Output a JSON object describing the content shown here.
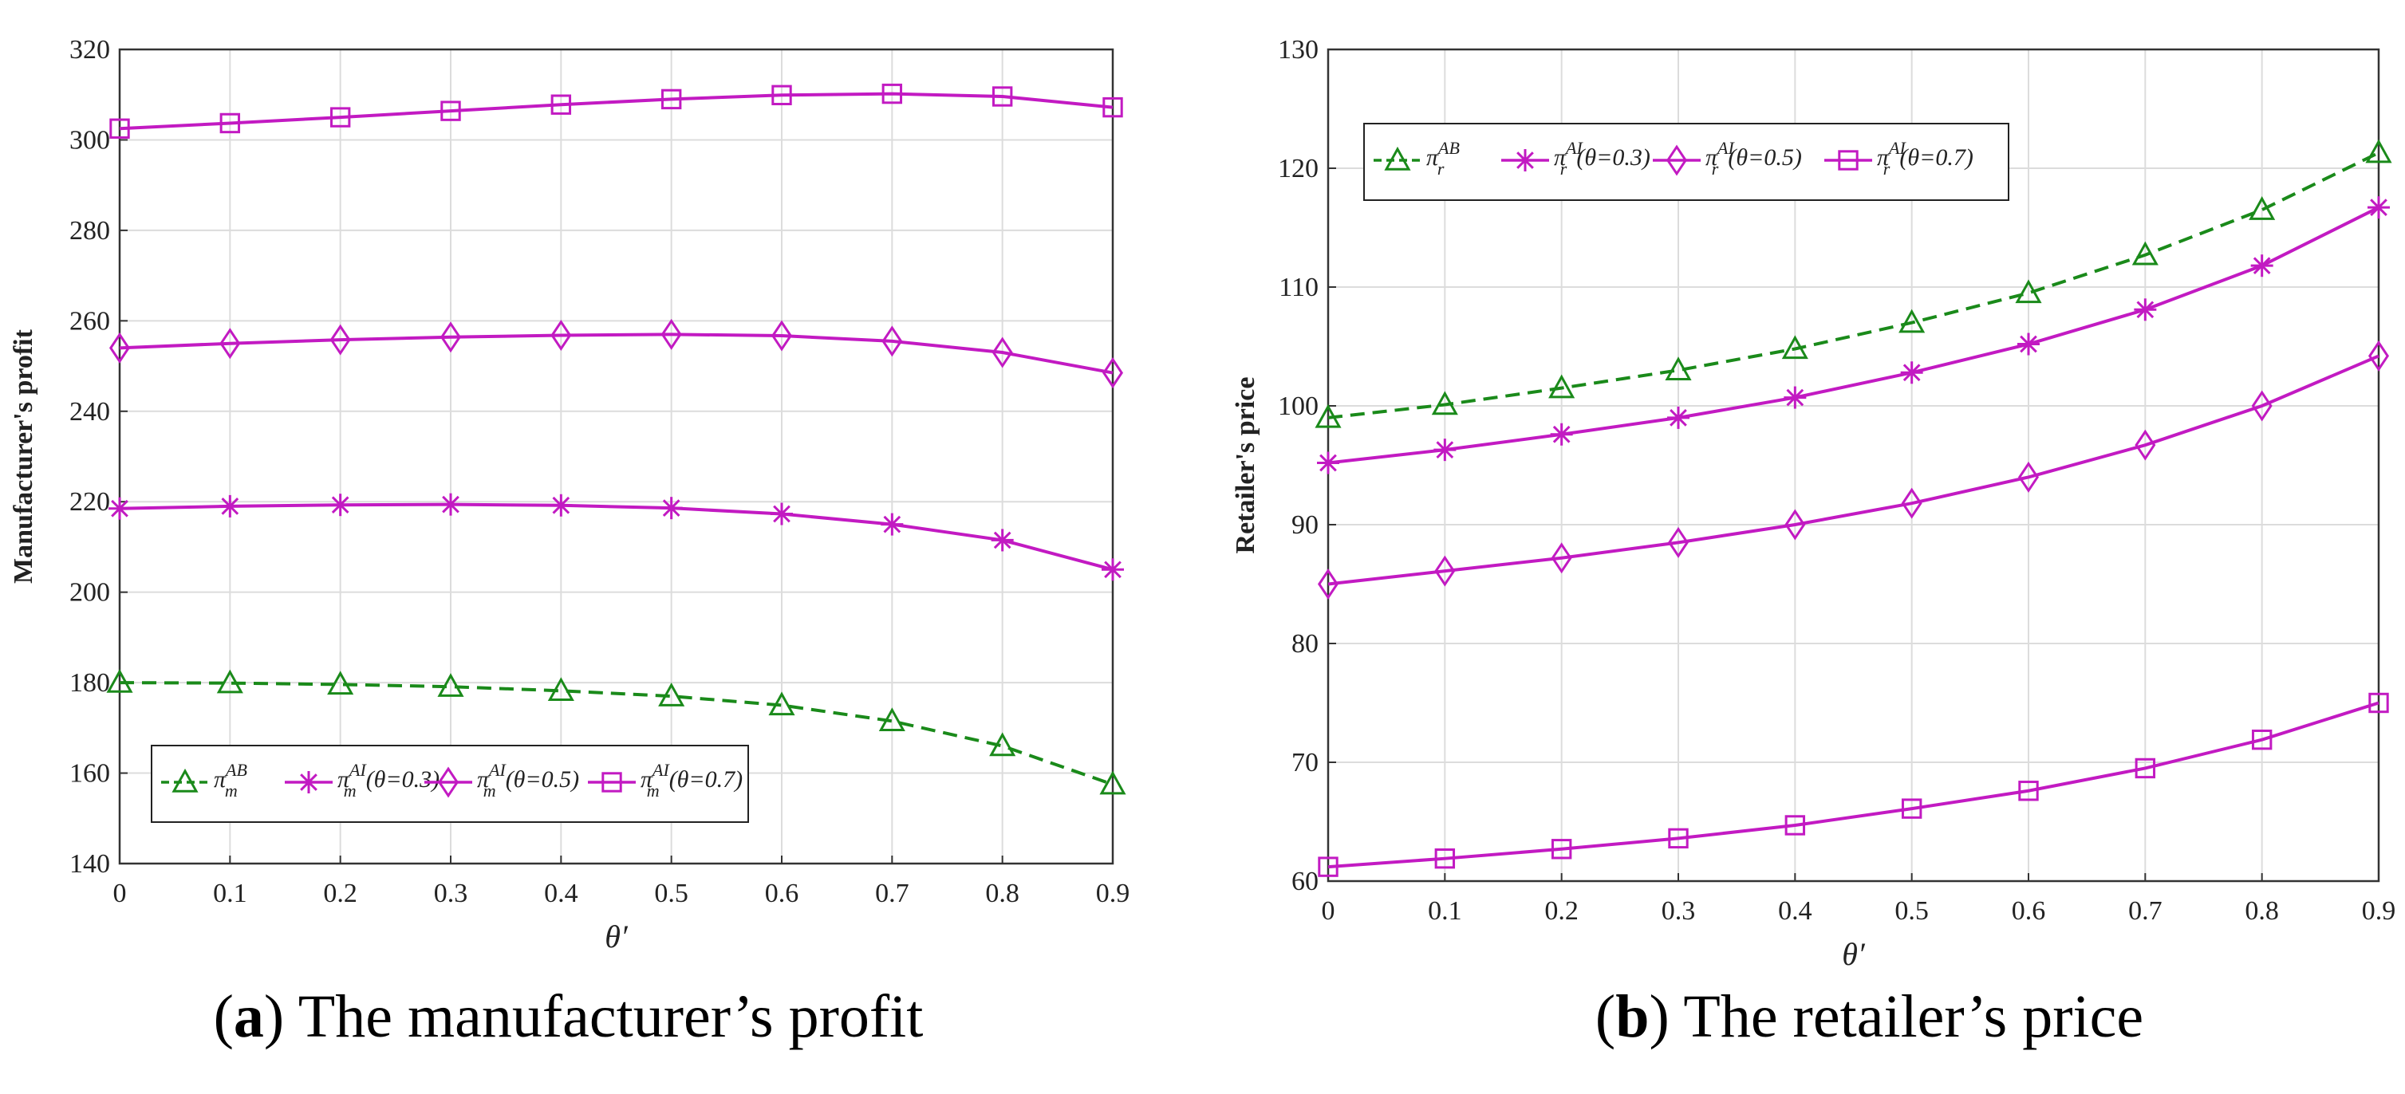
{
  "chart_data": [
    {
      "id": "a",
      "type": "line",
      "panel_label": "a",
      "caption_text": "The manufacturer’s profit",
      "xlabel": "θ′",
      "ylabel": "Manufacturer's profit",
      "x": [
        0,
        0.1,
        0.2,
        0.3,
        0.4,
        0.5,
        0.6,
        0.7,
        0.8,
        0.9
      ],
      "xticks": [
        "0",
        "0.1",
        "0.2",
        "0.3",
        "0.4",
        "0.5",
        "0.6",
        "0.7",
        "0.8",
        "0.9"
      ],
      "xlim": [
        0,
        0.9
      ],
      "ylim": [
        140,
        320
      ],
      "yticks": [
        140,
        160,
        180,
        200,
        220,
        240,
        260,
        280,
        300,
        320
      ],
      "grid": true,
      "legend_position": "lower-left",
      "series": [
        {
          "name": "π_m^AB",
          "base": "π",
          "sub": "m",
          "sup": "AB",
          "suffix": "",
          "color": "#1a8a1a",
          "dash": "dashed",
          "marker": "triangle",
          "values": [
            180,
            179.9,
            179.6,
            179.1,
            178.2,
            177,
            175,
            171.5,
            166,
            157.5
          ]
        },
        {
          "name": "π_m^AI(θ=0.3)",
          "base": "π",
          "sub": "m",
          "sup": "AI",
          "suffix": "(θ=0.3)",
          "color": "#c21ac2",
          "dash": "solid",
          "marker": "asterisk",
          "values": [
            218.5,
            219,
            219.3,
            219.4,
            219.2,
            218.6,
            217.3,
            215,
            211.5,
            205
          ]
        },
        {
          "name": "π_m^AI(θ=0.5)",
          "base": "π",
          "sub": "m",
          "sup": "AI",
          "suffix": "(θ=0.5)",
          "color": "#c21ac2",
          "dash": "solid",
          "marker": "diamond",
          "values": [
            254,
            255,
            255.8,
            256.4,
            256.8,
            257,
            256.7,
            255.5,
            253,
            248.5
          ]
        },
        {
          "name": "π_m^AI(θ=0.7)",
          "base": "π",
          "sub": "m",
          "sup": "AI",
          "suffix": "(θ=0.7)",
          "color": "#c21ac2",
          "dash": "solid",
          "marker": "square",
          "values": [
            302.5,
            303.7,
            305,
            306.4,
            307.8,
            309,
            309.9,
            310.2,
            309.6,
            307.2
          ]
        }
      ]
    },
    {
      "id": "b",
      "type": "line",
      "panel_label": "b",
      "caption_text": "The retailer’s price",
      "xlabel": "θ′",
      "ylabel": "Retailer's price",
      "x": [
        0,
        0.1,
        0.2,
        0.3,
        0.4,
        0.5,
        0.6,
        0.7,
        0.8,
        0.9
      ],
      "xticks": [
        "0",
        "0.1",
        "0.2",
        "0.3",
        "0.4",
        "0.5",
        "0.6",
        "0.7",
        "0.8",
        "0.9"
      ],
      "xlim": [
        0,
        0.9
      ],
      "ylim": [
        60,
        130
      ],
      "yticks": [
        60,
        70,
        80,
        90,
        100,
        110,
        120,
        130
      ],
      "grid": true,
      "legend_position": "top-left",
      "series": [
        {
          "name": "π_r^AB",
          "base": "π",
          "sub": "r",
          "sup": "AB",
          "suffix": "",
          "color": "#1a8a1a",
          "dash": "dashed",
          "marker": "triangle",
          "values": [
            99,
            100.1,
            101.5,
            103,
            104.8,
            107,
            109.5,
            112.7,
            116.5,
            121.3
          ]
        },
        {
          "name": "π_r^AI(θ=0.3)",
          "base": "π",
          "sub": "r",
          "sup": "AI",
          "suffix": "(θ=0.3)",
          "color": "#c21ac2",
          "dash": "solid",
          "marker": "asterisk",
          "values": [
            95.2,
            96.3,
            97.6,
            99,
            100.7,
            102.8,
            105.2,
            108.1,
            111.8,
            116.7
          ]
        },
        {
          "name": "π_r^AI(θ=0.5)",
          "base": "π",
          "sub": "r",
          "sup": "AI",
          "suffix": "(θ=0.5)",
          "color": "#c21ac2",
          "dash": "solid",
          "marker": "diamond",
          "values": [
            85,
            86.1,
            87.2,
            88.5,
            90,
            91.8,
            94,
            96.7,
            100,
            104.2
          ]
        },
        {
          "name": "π_r^AI(θ=0.7)",
          "base": "π",
          "sub": "r",
          "sup": "AI",
          "suffix": "(θ=0.7)",
          "color": "#c21ac2",
          "dash": "solid",
          "marker": "square",
          "values": [
            61.2,
            61.9,
            62.7,
            63.6,
            64.7,
            66.1,
            67.6,
            69.5,
            71.9,
            75
          ]
        }
      ]
    }
  ]
}
